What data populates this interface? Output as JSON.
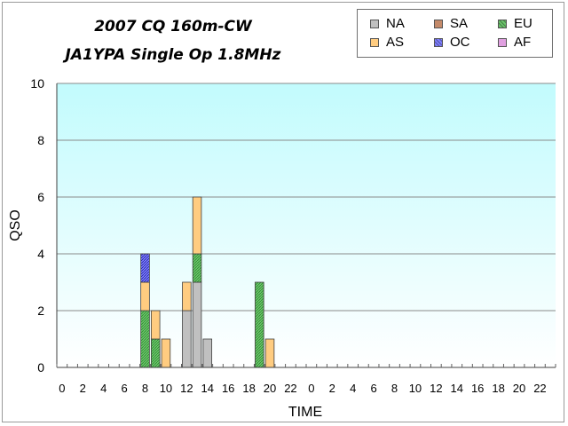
{
  "title_line1": "2007 CQ 160m-CW",
  "title_line2": "JA1YPA  Single Op 1.8MHz",
  "colors": {
    "plot_top": "#c2fbfd",
    "plot_bottom": "#ffffff",
    "NA": "#c0c0c0",
    "SA": "#c48a6a",
    "EU": "#6cc46c",
    "AS": "#ffcc80",
    "OC": "#8080ff",
    "AF": "#e0a0e0"
  },
  "chart_data": {
    "type": "bar",
    "stacked": true,
    "xlabel": "TIME",
    "ylabel": "QSO",
    "ylim": [
      0,
      10
    ],
    "yticks": [
      0,
      2,
      4,
      6,
      8,
      10
    ],
    "grid": true,
    "legend_position": "top-right",
    "legend_layout": [
      [
        "NA",
        "SA",
        "EU"
      ],
      [
        "AS",
        "OC",
        "AF"
      ]
    ],
    "categories": [
      0,
      1,
      2,
      3,
      4,
      5,
      6,
      7,
      8,
      9,
      10,
      11,
      12,
      13,
      14,
      15,
      16,
      17,
      18,
      19,
      20,
      21,
      22,
      23,
      0,
      1,
      2,
      3,
      4,
      5,
      6,
      7,
      8,
      9,
      10,
      11,
      12,
      13,
      14,
      15,
      16,
      17,
      18,
      19,
      20,
      21,
      22,
      23
    ],
    "tick_labels": [
      "0",
      "2",
      "4",
      "6",
      "8",
      "10",
      "12",
      "14",
      "16",
      "18",
      "20",
      "22",
      "0",
      "2",
      "4",
      "6",
      "8",
      "10",
      "12",
      "14",
      "16",
      "18",
      "20",
      "22"
    ],
    "series": [
      {
        "name": "NA",
        "values": [
          0,
          0,
          0,
          0,
          0,
          0,
          0,
          0,
          0,
          0,
          0,
          0,
          2,
          3,
          1,
          0,
          0,
          0,
          0,
          0,
          0,
          0,
          0,
          0,
          0,
          0,
          0,
          0,
          0,
          0,
          0,
          0,
          0,
          0,
          0,
          0,
          0,
          0,
          0,
          0,
          0,
          0,
          0,
          0,
          0,
          0,
          0,
          0
        ]
      },
      {
        "name": "SA",
        "values": [
          0,
          0,
          0,
          0,
          0,
          0,
          0,
          0,
          0,
          0,
          0,
          0,
          0,
          0,
          0,
          0,
          0,
          0,
          0,
          0,
          0,
          0,
          0,
          0,
          0,
          0,
          0,
          0,
          0,
          0,
          0,
          0,
          0,
          0,
          0,
          0,
          0,
          0,
          0,
          0,
          0,
          0,
          0,
          0,
          0,
          0,
          0,
          0
        ]
      },
      {
        "name": "EU",
        "values": [
          0,
          0,
          0,
          0,
          0,
          0,
          0,
          0,
          2,
          1,
          0,
          0,
          0,
          1,
          0,
          0,
          0,
          0,
          0,
          3,
          0,
          0,
          0,
          0,
          0,
          0,
          0,
          0,
          0,
          0,
          0,
          0,
          0,
          0,
          0,
          0,
          0,
          0,
          0,
          0,
          0,
          0,
          0,
          0,
          0,
          0,
          0,
          0
        ]
      },
      {
        "name": "AS",
        "values": [
          0,
          0,
          0,
          0,
          0,
          0,
          0,
          0,
          1,
          1,
          1,
          0,
          1,
          2,
          0,
          0,
          0,
          0,
          0,
          0,
          1,
          0,
          0,
          0,
          0,
          0,
          0,
          0,
          0,
          0,
          0,
          0,
          0,
          0,
          0,
          0,
          0,
          0,
          0,
          0,
          0,
          0,
          0,
          0,
          0,
          0,
          0,
          0
        ]
      },
      {
        "name": "OC",
        "values": [
          0,
          0,
          0,
          0,
          0,
          0,
          0,
          0,
          1,
          0,
          0,
          0,
          0,
          0,
          0,
          0,
          0,
          0,
          0,
          0,
          0,
          0,
          0,
          0,
          0,
          0,
          0,
          0,
          0,
          0,
          0,
          0,
          0,
          0,
          0,
          0,
          0,
          0,
          0,
          0,
          0,
          0,
          0,
          0,
          0,
          0,
          0,
          0
        ]
      },
      {
        "name": "AF",
        "values": [
          0,
          0,
          0,
          0,
          0,
          0,
          0,
          0,
          0,
          0,
          0,
          0,
          0,
          0,
          0,
          0,
          0,
          0,
          0,
          0,
          0,
          0,
          0,
          0,
          0,
          0,
          0,
          0,
          0,
          0,
          0,
          0,
          0,
          0,
          0,
          0,
          0,
          0,
          0,
          0,
          0,
          0,
          0,
          0,
          0,
          0,
          0,
          0
        ]
      }
    ]
  }
}
